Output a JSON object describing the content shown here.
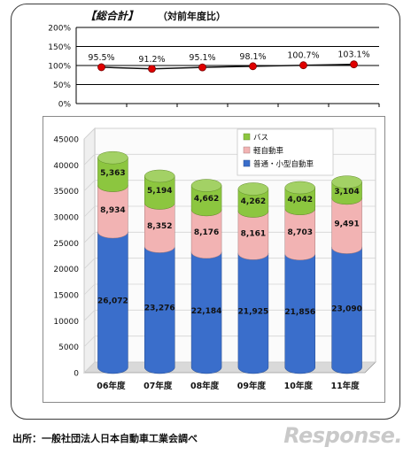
{
  "top_title": "【総合計】",
  "top_subtitle": "（対前年度比）",
  "source_text": "出所：一般社団法人日本自動車工業会調べ",
  "logo_text": "Response.",
  "chart_data": [
    {
      "type": "line",
      "ylim": [
        0,
        200
      ],
      "y_ticks": [
        "200%",
        "150%",
        "100%",
        "50%",
        "0%"
      ],
      "y_tick_values": [
        200,
        150,
        100,
        50,
        0
      ],
      "series": [
        {
          "values": [
            95.5,
            91.2,
            95.1,
            98.1,
            100.7,
            103.1
          ],
          "labels": [
            "95.5%",
            "91.2%",
            "95.1%",
            "98.1%",
            "100.7%",
            "103.1%"
          ]
        }
      ],
      "color": "#e00000"
    },
    {
      "type": "bar",
      "stacked": true,
      "categories": [
        "06年度",
        "07年度",
        "08年度",
        "09年度",
        "10年度",
        "11年度"
      ],
      "ylim": [
        0,
        45000
      ],
      "y_ticks": [
        "45000",
        "40000",
        "35000",
        "30000",
        "25000",
        "20000",
        "15000",
        "10000",
        "5000",
        "0"
      ],
      "y_tick_values": [
        45000,
        40000,
        35000,
        30000,
        25000,
        20000,
        15000,
        10000,
        5000,
        0
      ],
      "series": [
        {
          "name": "普通・小型自動車",
          "color": "#3a6ecb",
          "values": [
            26072,
            23276,
            22184,
            21925,
            21856,
            23090
          ],
          "labels": [
            "26,072",
            "23,276",
            "22,184",
            "21,925",
            "21,856",
            "23,090"
          ]
        },
        {
          "name": "軽自動車",
          "color": "#f2b3b3",
          "values": [
            8934,
            8352,
            8176,
            8161,
            8703,
            9491
          ],
          "labels": [
            "8,934",
            "8,352",
            "8,176",
            "8,161",
            "8,703",
            "9,491"
          ]
        },
        {
          "name": "バス",
          "color": "#8cc63f",
          "values": [
            5363,
            5194,
            4662,
            4262,
            4042,
            3104
          ],
          "labels": [
            "5,363",
            "5,194",
            "4,662",
            "4,262",
            "4,042",
            "3,104"
          ]
        }
      ],
      "legend_order": [
        "バス",
        "軽自動車",
        "普通・小型自動車"
      ],
      "legend_placement": "top-right"
    }
  ]
}
